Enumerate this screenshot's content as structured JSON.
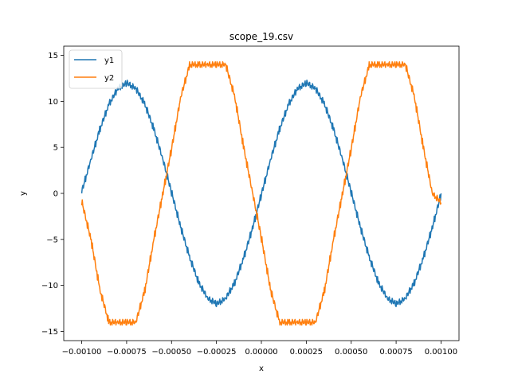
{
  "chart_data": {
    "type": "line",
    "title": "scope_19.csv",
    "xlabel": "x",
    "ylabel": "y",
    "xlim": [
      -0.0011,
      0.0011
    ],
    "ylim": [
      -16,
      16
    ],
    "grid": false,
    "legend_position": "top-left",
    "x_ticks": [
      -0.001,
      -0.00075,
      -0.0005,
      -0.00025,
      0.0,
      0.00025,
      0.0005,
      0.00075,
      0.001
    ],
    "x_tick_labels": [
      "−0.00100",
      "−0.00075",
      "−0.00050",
      "−0.00025",
      "0.00000",
      "0.00025",
      "0.00050",
      "0.00075",
      "0.00100"
    ],
    "y_ticks": [
      -15,
      -10,
      -5,
      0,
      5,
      10,
      15
    ],
    "y_tick_labels": [
      "−15",
      "−10",
      "−5",
      "0",
      "5",
      "10",
      "15"
    ],
    "x": [
      -0.001,
      -0.00095,
      -0.0009,
      -0.00085,
      -0.0008,
      -0.00075,
      -0.0007,
      -0.00065,
      -0.0006,
      -0.00055,
      -0.0005,
      -0.00045,
      -0.0004,
      -0.00035,
      -0.0003,
      -0.00025,
      -0.0002,
      -0.00015,
      -0.0001,
      -5e-05,
      0.0,
      5e-05,
      0.0001,
      0.00015,
      0.0002,
      0.00025,
      0.0003,
      0.00035,
      0.0004,
      0.00045,
      0.0005,
      0.00055,
      0.0006,
      0.00065,
      0.0007,
      0.00075,
      0.0008,
      0.00085,
      0.0009,
      0.00095,
      0.001
    ],
    "series": [
      {
        "name": "y1",
        "color": "#1f77b4",
        "values": [
          0.3,
          3.7,
          7.0,
          9.7,
          11.4,
          12.0,
          11.4,
          9.7,
          7.0,
          3.7,
          0.0,
          -3.7,
          -7.0,
          -9.7,
          -11.4,
          -12.0,
          -11.4,
          -9.7,
          -7.0,
          -3.7,
          0.0,
          3.7,
          7.0,
          9.7,
          11.4,
          12.0,
          11.4,
          9.7,
          7.0,
          3.7,
          0.0,
          -3.7,
          -7.0,
          -9.7,
          -11.4,
          -12.0,
          -11.4,
          -9.7,
          -7.0,
          -3.7,
          0.0
        ]
      },
      {
        "name": "y2",
        "color": "#ff7f0e",
        "values": [
          -1.0,
          -5.0,
          -10.5,
          -14.0,
          -14.0,
          -14.0,
          -14.0,
          -10.5,
          -5.0,
          0.0,
          5.0,
          10.5,
          14.0,
          14.0,
          14.0,
          14.0,
          14.0,
          10.5,
          5.0,
          0.0,
          -5.0,
          -10.5,
          -14.0,
          -14.0,
          -14.0,
          -14.0,
          -14.0,
          -10.5,
          -5.0,
          0.0,
          5.0,
          10.5,
          14.0,
          14.0,
          14.0,
          14.0,
          14.0,
          10.5,
          5.0,
          0.0,
          -1.0
        ]
      }
    ]
  }
}
